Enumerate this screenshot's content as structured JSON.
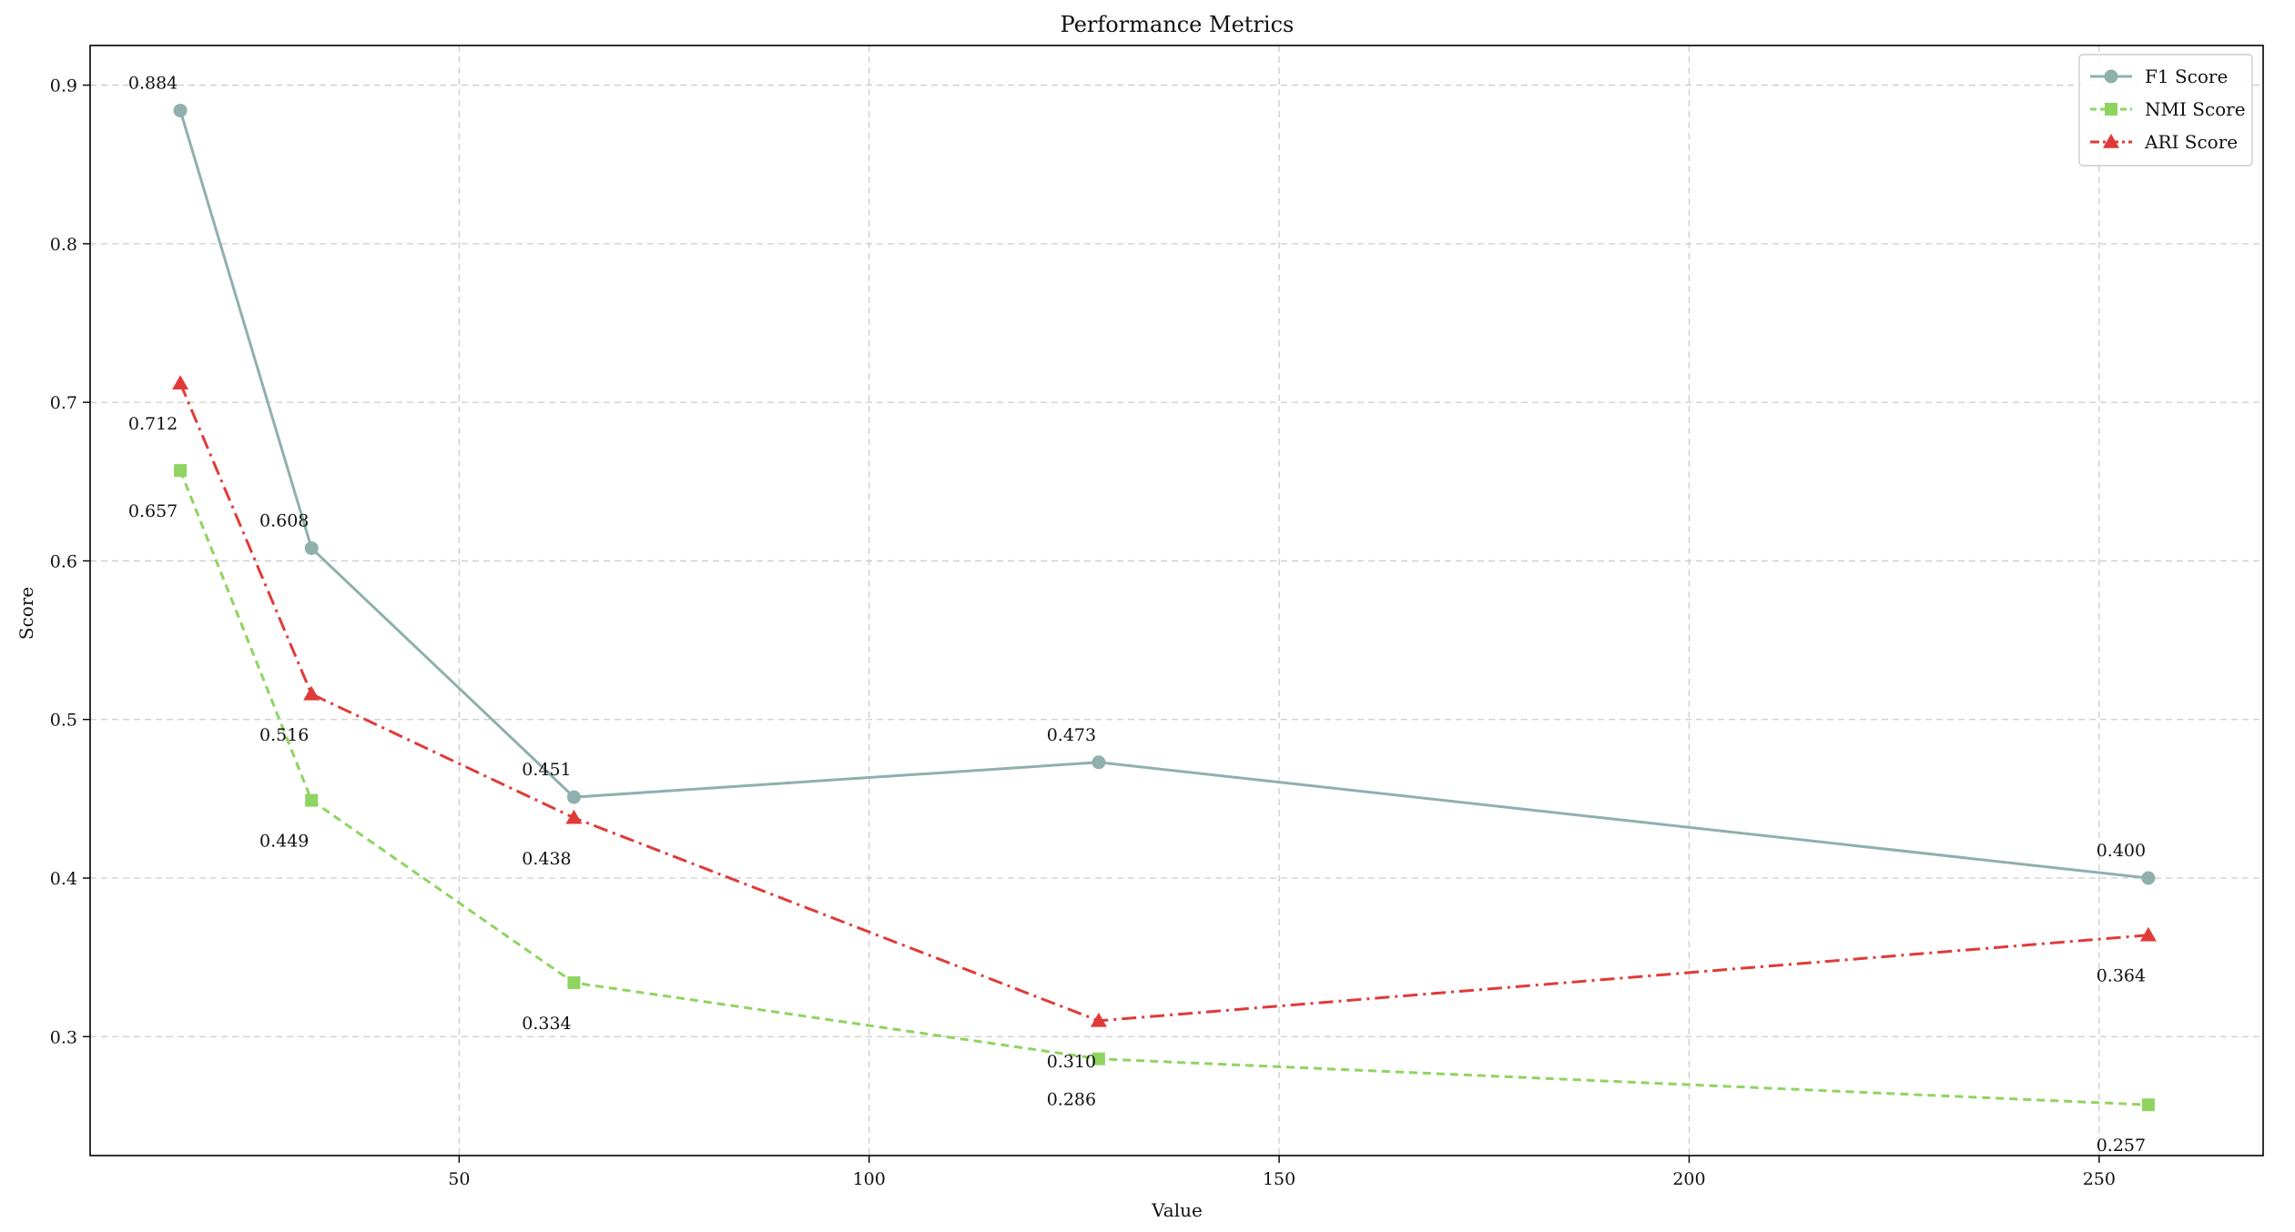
{
  "chart_data": {
    "type": "line",
    "title": "Performance Metrics",
    "xlabel": "Value",
    "ylabel": "Score",
    "x": [
      16,
      32,
      64,
      128,
      256
    ],
    "xlim": [
      5,
      270
    ],
    "ylim": [
      0.225,
      0.925
    ],
    "xticks": [
      50,
      100,
      150,
      200,
      250
    ],
    "yticks": [
      0.3,
      0.4,
      0.5,
      0.6,
      0.7,
      0.8,
      0.9
    ],
    "grid": true,
    "legend_position": "top-right",
    "series": [
      {
        "name": "F1 Score",
        "values": [
          0.884,
          0.608,
          0.451,
          0.473,
          0.4
        ],
        "labels": [
          "0.884",
          "0.608",
          "0.451",
          "0.473",
          "0.400"
        ],
        "color": "#8fb0ad",
        "marker": "circle",
        "line_style": "solid",
        "label_position": "above"
      },
      {
        "name": "NMI Score",
        "values": [
          0.657,
          0.449,
          0.334,
          0.286,
          0.257
        ],
        "labels": [
          "0.657",
          "0.449",
          "0.334",
          "0.286",
          "0.257"
        ],
        "color": "#8fd460",
        "marker": "square",
        "line_style": "dashed",
        "label_position": "below"
      },
      {
        "name": "ARI Score",
        "values": [
          0.712,
          0.516,
          0.438,
          0.31,
          0.364
        ],
        "labels": [
          "0.712",
          "0.516",
          "0.438",
          "0.310",
          "0.364"
        ],
        "color": "#e03a38",
        "marker": "triangle",
        "line_style": "dashdot",
        "label_position": "below"
      }
    ]
  }
}
